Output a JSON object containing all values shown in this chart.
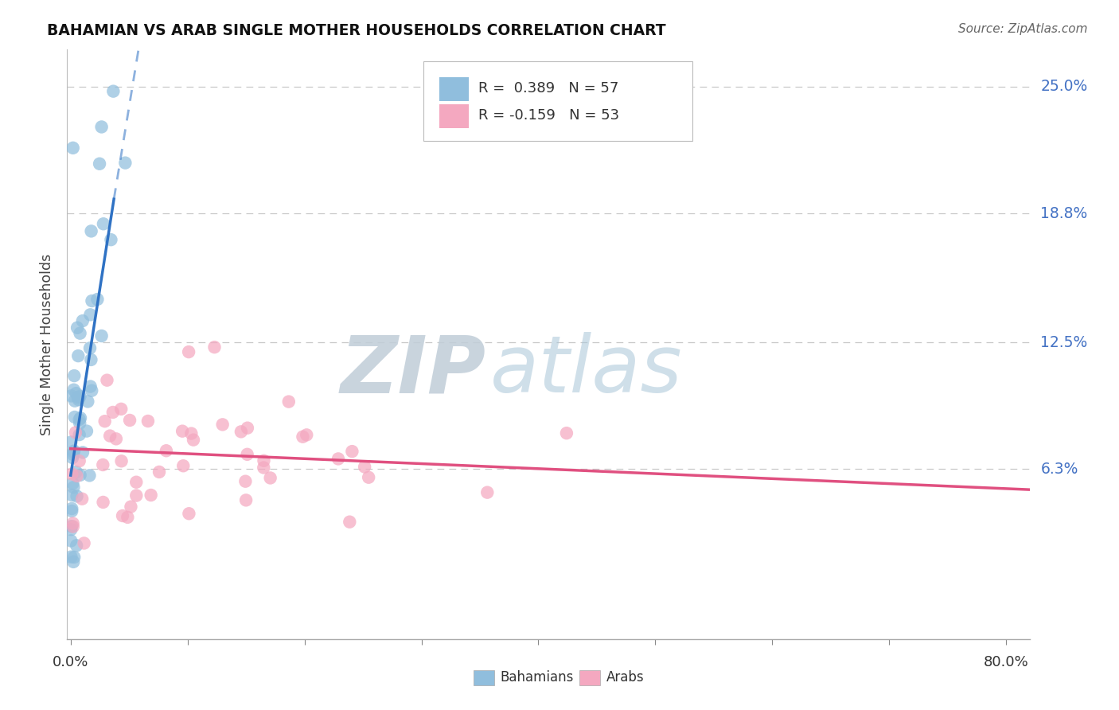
{
  "title": "BAHAMIAN VS ARAB SINGLE MOTHER HOUSEHOLDS CORRELATION CHART",
  "source": "Source: ZipAtlas.com",
  "ylabel": "Single Mother Households",
  "y_tick_labels": [
    "6.3%",
    "12.5%",
    "18.8%",
    "25.0%"
  ],
  "y_tick_values": [
    0.063,
    0.125,
    0.188,
    0.25
  ],
  "xlim": [
    -0.003,
    0.82
  ],
  "ylim": [
    -0.02,
    0.268
  ],
  "x_ticks": [
    0.0,
    0.1,
    0.2,
    0.3,
    0.4,
    0.5,
    0.6,
    0.7,
    0.8
  ],
  "r_bahamian": 0.389,
  "n_bahamian": 57,
  "r_arab": -0.159,
  "n_arab": 53,
  "color_bahamian": "#90bedd",
  "color_arab": "#f4a8c0",
  "trend_color_bahamian": "#2f72c4",
  "trend_color_arab": "#e05080",
  "watermark_zip": "ZIP",
  "watermark_atlas": "atlas",
  "watermark_color_zip": "#c5d5e5",
  "watermark_color_atlas": "#a0bfd8",
  "bah_trend_x0": 0.0,
  "bah_trend_y0": 0.06,
  "bah_trend_solid_x1": 0.037,
  "bah_trend_solid_y1": 0.195,
  "bah_trend_dash_x2": 0.058,
  "bah_trend_dash_y2": 0.268,
  "arab_trend_x0": 0.0,
  "arab_trend_y0": 0.073,
  "arab_trend_x1": 0.82,
  "arab_trend_y1": 0.053
}
